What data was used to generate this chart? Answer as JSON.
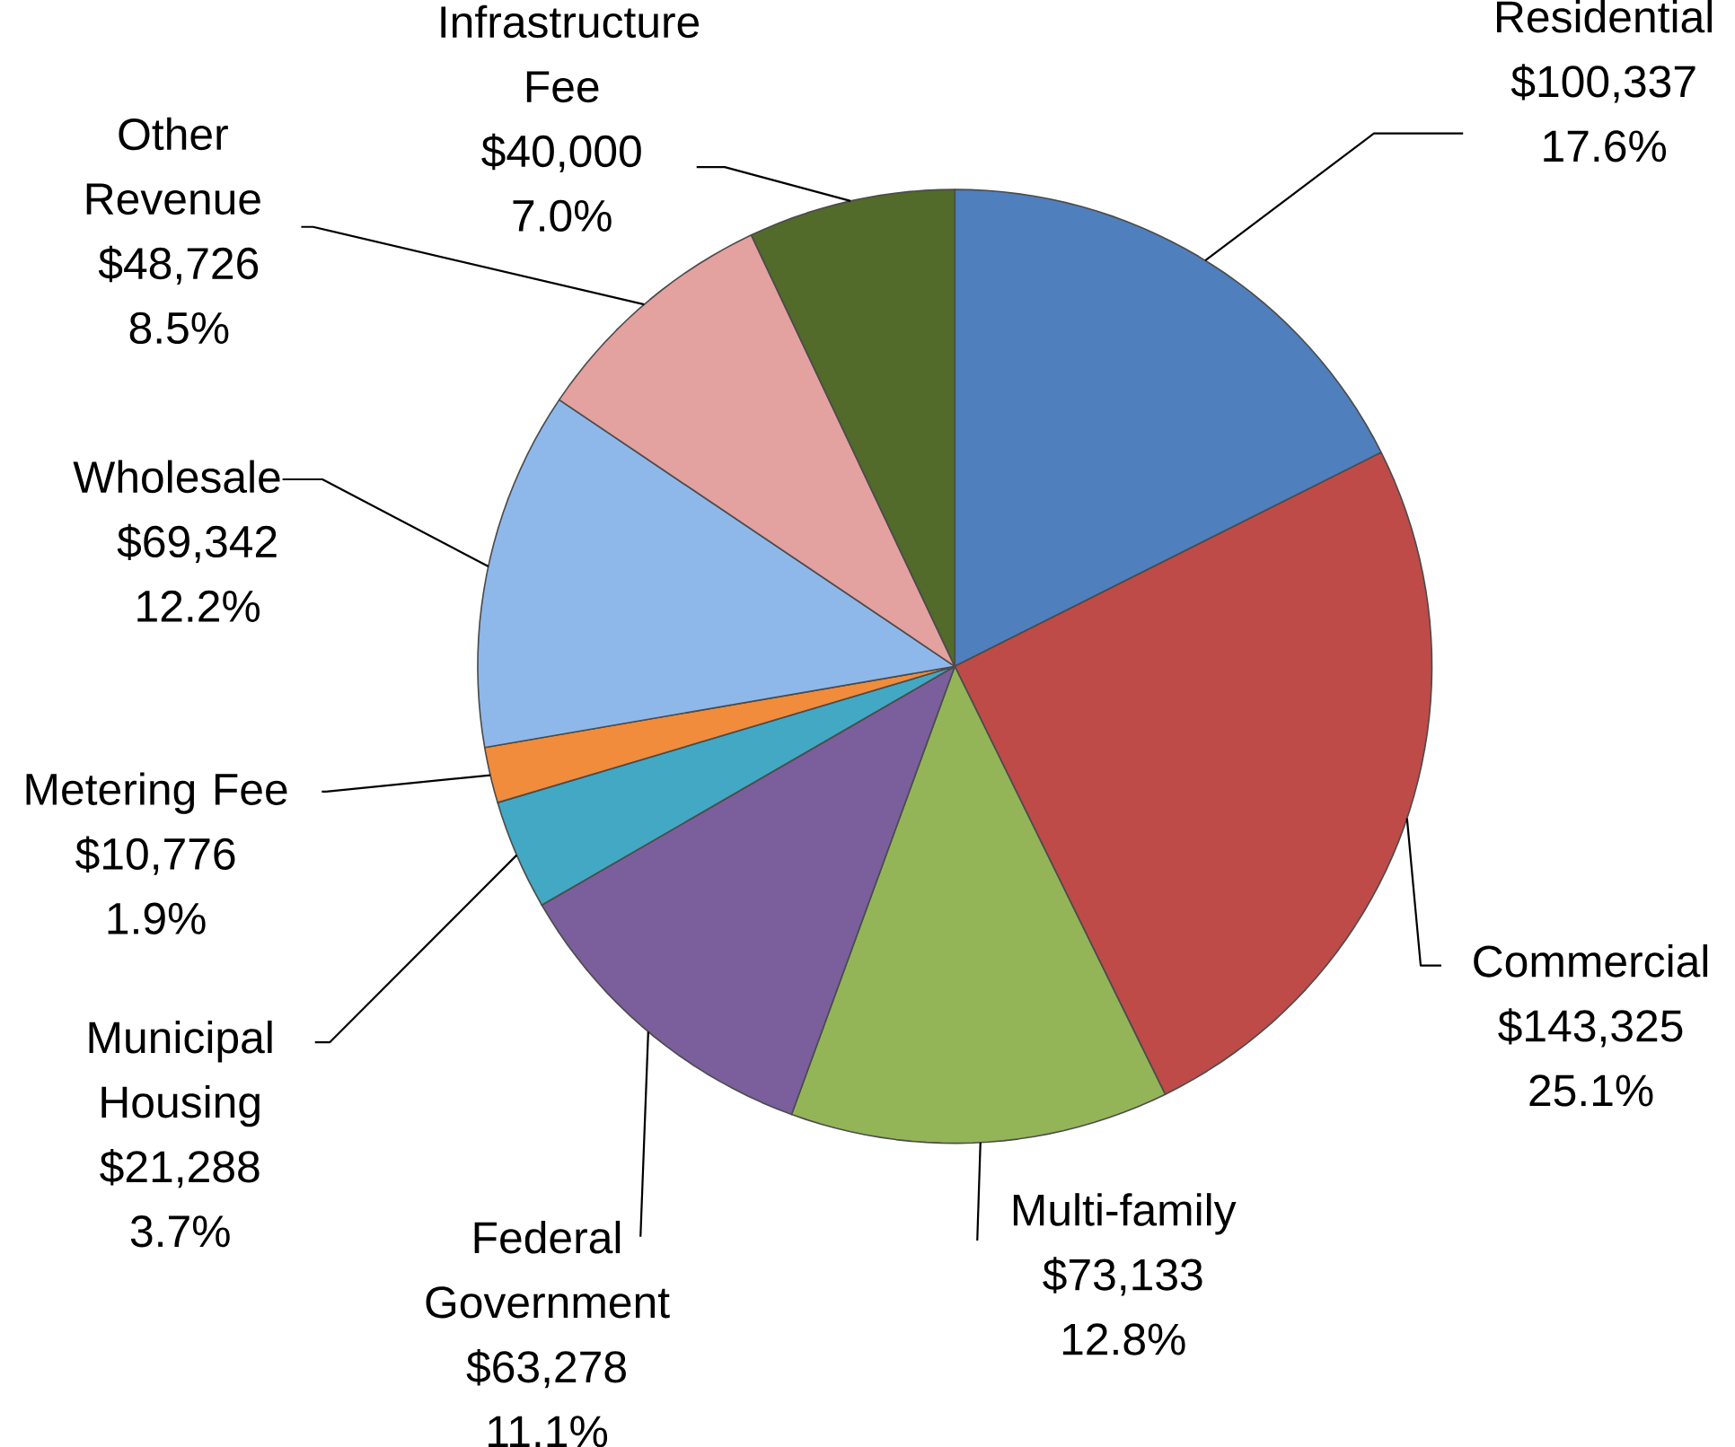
{
  "chart_data": {
    "type": "pie",
    "categories": [
      "Residential",
      "Commercial",
      "Multi-family",
      "Federal Government",
      "Municipal Housing",
      "Metering Fee",
      "Wholesale",
      "Other Revenue",
      "Infrastructure Fee"
    ],
    "values": [
      100337,
      143325,
      73133,
      63278,
      21288,
      10776,
      69342,
      48726,
      40000
    ],
    "colors": [
      "#4f7fbc",
      "#be4b48",
      "#93b558",
      "#7a5f9c",
      "#42a8c4",
      "#f08c3c",
      "#8fb8ea",
      "#e3a1a0",
      "#526a2a"
    ],
    "value_labels": [
      "$100,337 17.6%",
      "$143,325 25.1%",
      "$73,133 12.8%",
      "$63,278 11.1%",
      "$21,288 3.7%",
      "$10,776 1.9%",
      "$69,342 12.2%",
      "$48,726 8.5%",
      "$40,000 7.0%"
    ]
  }
}
